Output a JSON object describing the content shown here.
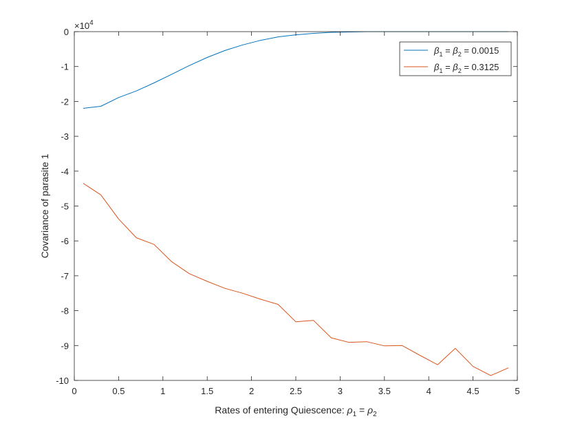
{
  "chart_data": {
    "type": "line",
    "title": "",
    "xlabel": "Rates of entering Quiescence:",
    "xlabel_math": {
      "lhs": "ρ",
      "lhs_sub": "1",
      "eq": " = ",
      "rhs": "ρ",
      "rhs_sub": "2"
    },
    "ylabel": "Covariance of parasite 1",
    "y_exponent_label": {
      "base": "×10",
      "exp": "4"
    },
    "xlim": [
      0,
      5
    ],
    "ylim": [
      -10,
      0
    ],
    "y_scale_multiplier": 10000,
    "xticks": [
      0,
      0.5,
      1,
      1.5,
      2,
      2.5,
      3,
      3.5,
      4,
      4.5,
      5
    ],
    "xtick_labels": [
      "0",
      "0.5",
      "1",
      "1.5",
      "2",
      "2.5",
      "3",
      "3.5",
      "4",
      "4.5",
      "5"
    ],
    "yticks": [
      0,
      -1,
      -2,
      -3,
      -4,
      -5,
      -6,
      -7,
      -8,
      -9,
      -10
    ],
    "ytick_labels": [
      "0",
      "-1",
      "-2",
      "-3",
      "-4",
      "-5",
      "-6",
      "-7",
      "-8",
      "-9",
      "-10"
    ],
    "grid": false,
    "legend_position": "top-right",
    "x": [
      0.1,
      0.3,
      0.5,
      0.7,
      0.9,
      1.1,
      1.3,
      1.5,
      1.7,
      1.9,
      2.1,
      2.3,
      2.5,
      2.7,
      2.9,
      3.1,
      3.3,
      3.5,
      3.7,
      3.9,
      4.1,
      4.3,
      4.5,
      4.7,
      4.9
    ],
    "series": [
      {
        "legend": {
          "a": "β",
          "a_sub": "1",
          "eq": " = ",
          "b": "β",
          "b_sub": "2",
          "value": " = 0.0015"
        },
        "color": "#0072BD",
        "values": [
          -2.2,
          -2.14,
          -1.89,
          -1.7,
          -1.47,
          -1.22,
          -0.97,
          -0.74,
          -0.54,
          -0.38,
          -0.25,
          -0.15,
          -0.09,
          -0.05,
          -0.02,
          -0.01,
          0,
          0,
          0,
          0,
          0,
          0,
          0,
          0,
          0
        ]
      },
      {
        "legend": {
          "a": "β",
          "a_sub": "1",
          "eq": " = ",
          "b": "β",
          "b_sub": "2",
          "value": " = 0.3125"
        },
        "color": "#D95319",
        "values": [
          -4.35,
          -4.68,
          -5.37,
          -5.91,
          -6.1,
          -6.6,
          -6.94,
          -7.16,
          -7.36,
          -7.5,
          -7.67,
          -7.82,
          -8.32,
          -8.28,
          -8.78,
          -8.91,
          -8.89,
          -9.01,
          -9.0,
          -9.28,
          -9.55,
          -9.08,
          -9.6,
          -9.86,
          -9.64
        ]
      }
    ]
  }
}
